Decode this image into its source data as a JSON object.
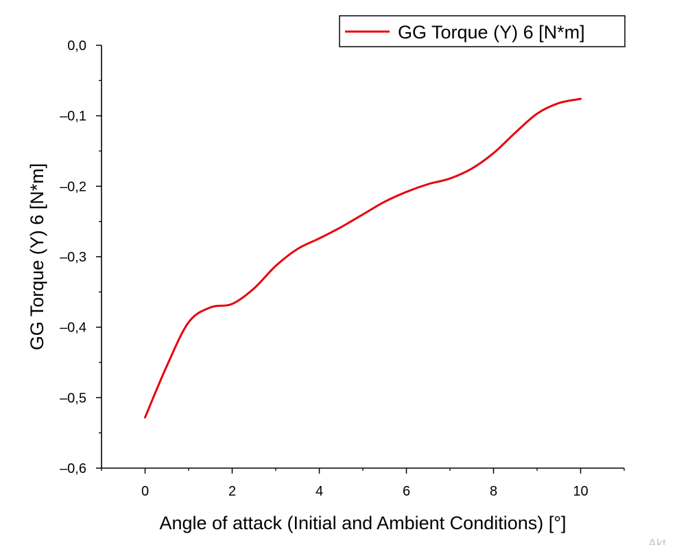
{
  "chart_data": {
    "type": "line",
    "title": "",
    "xlabel": "Angle of attack (Initial and Ambient Conditions) [°]",
    "ylabel": "GG Torque (Y) 6 [N*m]",
    "xlim": [
      -1,
      11
    ],
    "ylim": [
      -0.6,
      0.0
    ],
    "x_ticks": [
      0,
      2,
      4,
      6,
      8,
      10
    ],
    "y_ticks": [
      0.0,
      -0.1,
      -0.2,
      -0.3,
      -0.4,
      -0.5,
      -0.6
    ],
    "x_tick_labels": [
      "0",
      "2",
      "4",
      "6",
      "8",
      "10"
    ],
    "y_tick_labels": [
      "0,0",
      "–0,1",
      "–0,2",
      "–0,3",
      "–0,4",
      "–0,5",
      "–0,6"
    ],
    "grid": false,
    "legend_position": "top-right",
    "series": [
      {
        "name": "GG Torque (Y) 6 [N*m]",
        "color": "#e8000b",
        "x": [
          0,
          0.5,
          1,
          1.5,
          2,
          2.5,
          3,
          3.5,
          4,
          4.5,
          5,
          5.5,
          6,
          6.5,
          7,
          7.5,
          8,
          8.5,
          9,
          9.5,
          10
        ],
        "y": [
          -0.528,
          -0.455,
          -0.393,
          -0.372,
          -0.367,
          -0.345,
          -0.313,
          -0.289,
          -0.274,
          -0.258,
          -0.24,
          -0.222,
          -0.208,
          -0.197,
          -0.189,
          -0.175,
          -0.153,
          -0.124,
          -0.097,
          -0.082,
          -0.076
        ]
      }
    ]
  },
  "watermark": "Akt"
}
